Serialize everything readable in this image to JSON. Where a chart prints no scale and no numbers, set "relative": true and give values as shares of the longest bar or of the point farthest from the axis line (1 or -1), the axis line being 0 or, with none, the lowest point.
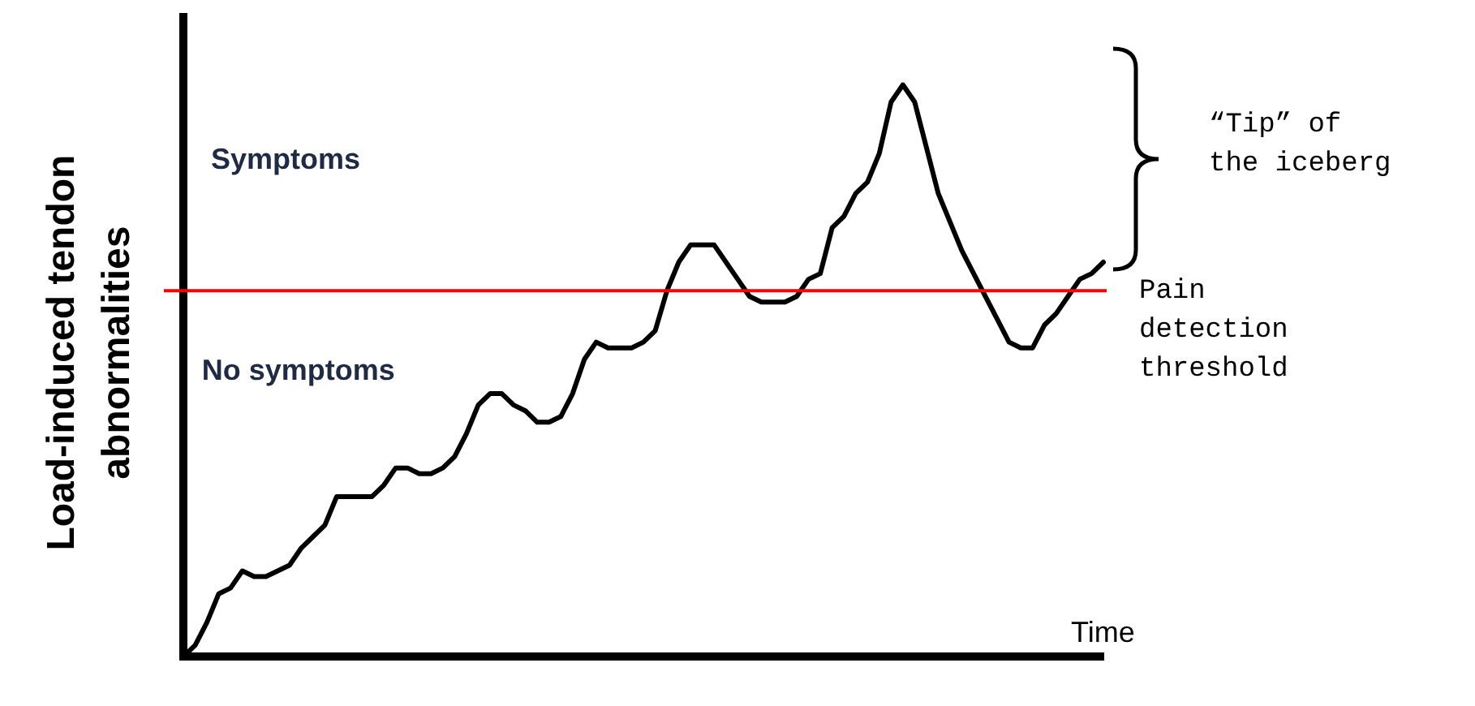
{
  "chart_data": {
    "type": "line",
    "relative": true,
    "xlabel": "Time",
    "ylabel": "Load-induced tendon abnormalities",
    "categories": [
      null,
      null,
      null,
      null,
      null,
      null,
      null,
      null,
      null,
      null,
      null,
      null,
      null,
      null,
      null,
      null,
      null,
      null,
      null,
      null,
      null,
      null,
      null,
      null,
      null,
      null,
      null,
      null,
      null,
      null,
      null,
      null,
      null,
      null,
      null,
      null,
      null,
      null,
      null,
      null,
      null,
      null,
      null,
      null,
      null,
      null,
      null,
      null,
      null,
      null,
      null,
      null,
      null,
      null,
      null,
      null,
      null,
      null,
      null,
      null,
      null,
      null,
      null,
      null,
      null,
      null,
      null,
      null,
      null,
      null,
      null,
      null,
      null,
      null,
      null,
      null,
      null,
      null,
      null
    ],
    "series": [
      {
        "color": "#000000",
        "values": [
          0,
          0.02,
          0.06,
          0.11,
          0.12,
          0.15,
          0.14,
          0.14,
          0.15,
          0.16,
          0.19,
          0.21,
          0.23,
          0.28,
          0.28,
          0.28,
          0.28,
          0.3,
          0.33,
          0.33,
          0.32,
          0.32,
          0.33,
          0.35,
          0.39,
          0.44,
          0.46,
          0.46,
          0.44,
          0.43,
          0.41,
          0.41,
          0.42,
          0.46,
          0.52,
          0.55,
          0.54,
          0.54,
          0.54,
          0.55,
          0.57,
          0.64,
          0.69,
          0.72,
          0.72,
          0.72,
          0.69,
          0.66,
          0.63,
          0.62,
          0.62,
          0.62,
          0.63,
          0.66,
          0.67,
          0.75,
          0.77,
          0.81,
          0.83,
          0.88,
          0.97,
          1,
          0.97,
          0.89,
          0.81,
          0.76,
          0.71,
          0.67,
          0.63,
          0.59,
          0.55,
          0.54,
          0.54,
          0.58,
          0.6,
          0.63,
          0.66,
          0.67,
          0.69
        ]
      }
    ],
    "ref_lines": [
      {
        "axis": "y",
        "value": 0.64,
        "label": "Pain detection threshold",
        "color": "#ff0000"
      }
    ],
    "annotations": [
      "Symptoms",
      "No symptoms",
      "“Tip” of the iceberg"
    ],
    "grid": false,
    "legend": false
  }
}
